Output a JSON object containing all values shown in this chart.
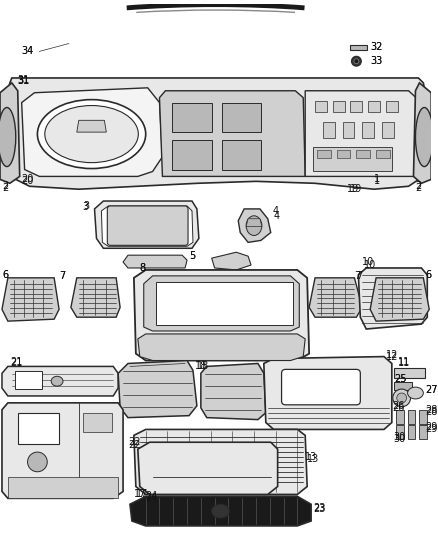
{
  "bg_color": "#ffffff",
  "lc": "#2a2a2a",
  "lc2": "#444444",
  "gray1": "#e8e8e8",
  "gray2": "#d0d0d0",
  "gray3": "#b8b8b8",
  "gray4": "#f4f4f4",
  "dark1": "#1a1a1a",
  "dark2": "#333333",
  "fs": 7.0,
  "lw": 0.7
}
